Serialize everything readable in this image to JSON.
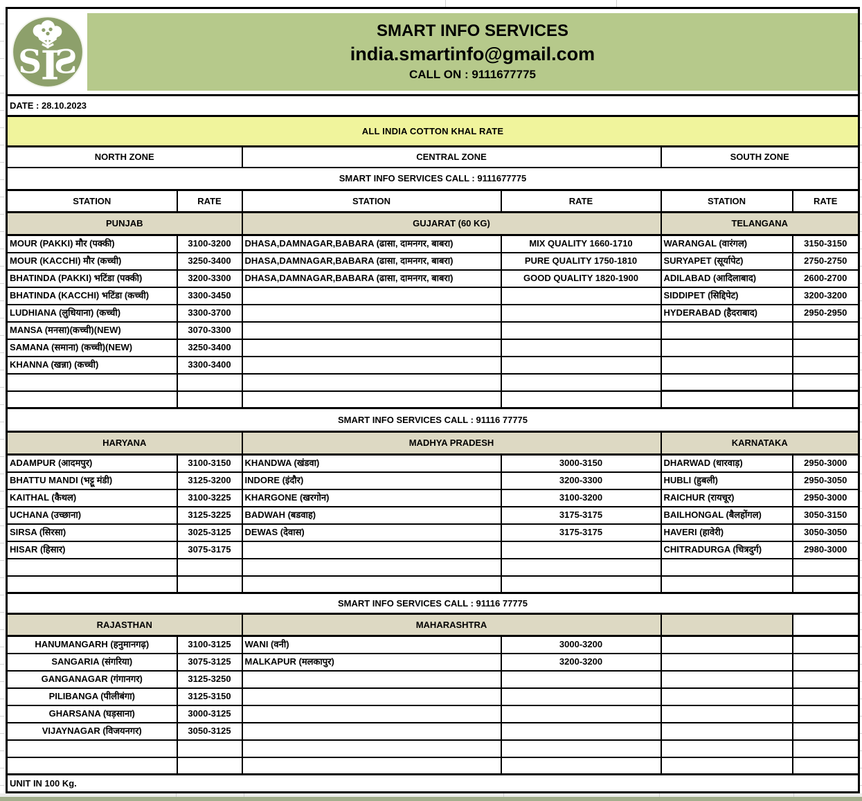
{
  "header": {
    "company": "SMART INFO SERVICES",
    "email": "india.smartinfo@gmail.com",
    "call_on": "CALL ON : 9111677775",
    "date": "DATE : 28.10.2023",
    "title": "ALL INDIA COTTON KHAL RATE",
    "logo_icon": "sis-cotton-logo"
  },
  "colors": {
    "header_green": "#b6c98b",
    "logo_green": "#8da06b",
    "title_yellow": "#f0f49c",
    "state_beige": "#ddd9c3",
    "border_black": "#000000"
  },
  "zones": [
    "NORTH ZONE",
    "CENTRAL ZONE",
    "SOUTH ZONE"
  ],
  "call_rows": [
    "SMART INFO SERVICES CALL : 9111677775",
    "SMART INFO SERVICES      CALL : 91116 77775",
    "SMART INFO SERVICES      CALL : 91116 77775"
  ],
  "column_headers": [
    "STATION",
    "RATE",
    "STATION",
    "RATE",
    "STATION",
    "RATE"
  ],
  "sections": [
    {
      "states": [
        "PUNJAB",
        "GUJARAT (60 KG)",
        "TELANGANA"
      ],
      "rows": 10,
      "north": [
        [
          "MOUR (PAKKI) मौर (पक्की)",
          "3100-3200"
        ],
        [
          "MOUR (KACCHI) मौर (कच्ची)",
          "3250-3400"
        ],
        [
          "BHATINDA (PAKKI) भटिंडा (पक्की)",
          "3200-3300"
        ],
        [
          "BHATINDA (KACCHI) भटिंडा (कच्ची)",
          "3300-3450"
        ],
        [
          "LUDHIANA (लुधियाना) (कच्ची)",
          "3300-3700"
        ],
        [
          "MANSA (मनसा)(कच्ची)(NEW)",
          "3070-3300"
        ],
        [
          "SAMANA (समाना) (कच्ची)(NEW)",
          "3250-3400"
        ],
        [
          "KHANNA (खन्ना) (कच्ची)",
          "3300-3400"
        ]
      ],
      "central": [
        [
          "DHASA,DAMNAGAR,BABARA (ढासा, दामनगर, बाबरा)",
          "MIX QUALITY  1660-1710"
        ],
        [
          "DHASA,DAMNAGAR,BABARA (ढासा, दामनगर, बाबरा)",
          "PURE QUALITY 1750-1810"
        ],
        [
          "DHASA,DAMNAGAR,BABARA (ढासा, दामनगर, बाबरा)",
          "GOOD QUALITY 1820-1900"
        ]
      ],
      "south": [
        [
          "WARANGAL (वारंगल)",
          "3150-3150"
        ],
        [
          "SURYAPET (सूर्यापेट)",
          "2750-2750"
        ],
        [
          "ADILABAD (आदिलाबाद)",
          "2600-2700"
        ],
        [
          "SIDDIPET (सिद्दिपेट)",
          "3200-3200"
        ],
        [
          "HYDERABAD (हैदराबाद)",
          "2950-2950"
        ]
      ]
    },
    {
      "states": [
        "HARYANA",
        "MADHYA PRADESH",
        "KARNATAKA"
      ],
      "rows": 8,
      "north": [
        [
          "ADAMPUR (आदमपुर)",
          "3100-3150"
        ],
        [
          "BHATTU MANDI (भट्टू मंडी)",
          "3125-3200"
        ],
        [
          "KAITHAL (कैथल)",
          "3100-3225"
        ],
        [
          "UCHANA (उच्छाना)",
          "3125-3225"
        ],
        [
          "SIRSA (सिरसा)",
          "3025-3125"
        ],
        [
          "HISAR (हिसार)",
          "3075-3175"
        ]
      ],
      "central": [
        [
          "KHANDWA (खंडवा)",
          "3000-3150"
        ],
        [
          "INDORE (इंदौर)",
          "3200-3300"
        ],
        [
          "KHARGONE (खरगोन)",
          "3100-3200"
        ],
        [
          "BADWAH (बडवाह)",
          "3175-3175"
        ],
        [
          "DEWAS (देवास)",
          "3175-3175"
        ]
      ],
      "south": [
        [
          "DHARWAD (धारवाड़)",
          "2950-3000"
        ],
        [
          "HUBLI (हुबली)",
          "2950-3050"
        ],
        [
          "RAICHUR (रायचूर)",
          "2950-3000"
        ],
        [
          "BAILHONGAL (बैलहोंगल)",
          "3050-3150"
        ],
        [
          "HAVERI (हावेरी)",
          "3050-3050"
        ],
        [
          "CHITRADURGA (चित्रदुर्ग)",
          "2980-3000"
        ]
      ]
    },
    {
      "states": [
        "RAJASTHAN",
        "MAHARASHTRA",
        ""
      ],
      "rows": 8,
      "north_centered": true,
      "south_header_split": true,
      "north": [
        [
          "HANUMANGARH (हनुमानगढ़)",
          "3100-3125"
        ],
        [
          "SANGARIA (संगरिया)",
          "3075-3125"
        ],
        [
          "GANGANAGAR (गंगानगर)",
          "3125-3250"
        ],
        [
          "PILIBANGA (पीलीबंगा)",
          "3125-3150"
        ],
        [
          "GHARSANA (घड़साना)",
          "3000-3125"
        ],
        [
          "VIJAYNAGAR (विजयनगर)",
          "3050-3125"
        ]
      ],
      "central": [
        [
          "WANI (वनी)",
          "3000-3200"
        ],
        [
          "MALKAPUR (मलकापुर)",
          "3200-3200"
        ]
      ],
      "south": []
    }
  ],
  "footer": "UNIT IN 100 Kg."
}
